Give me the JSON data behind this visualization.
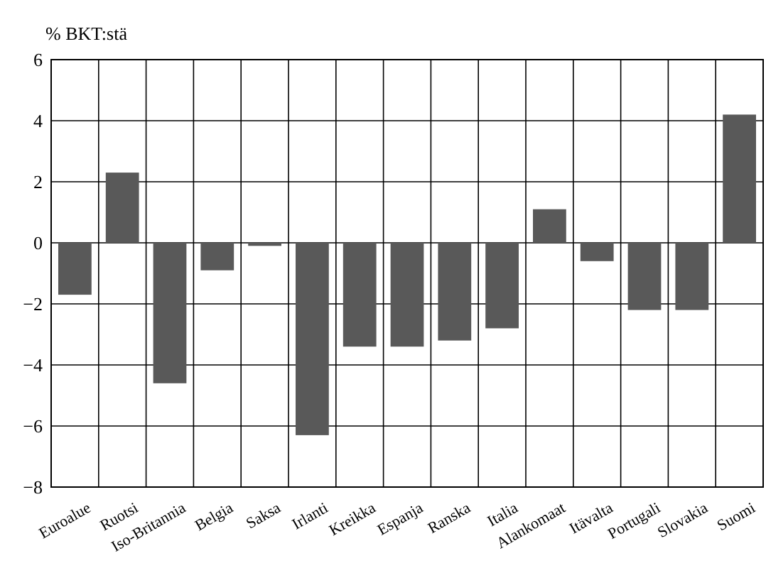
{
  "chart_data": {
    "type": "bar",
    "ylabel": "% BKT:stä",
    "categories": [
      "Euroalue",
      "Ruotsi",
      "Iso-Britannia",
      "Belgia",
      "Saksa",
      "Irlanti",
      "Kreikka",
      "Espanja",
      "Ranska",
      "Italia",
      "Alankomaat",
      "Itävalta",
      "Portugali",
      "Slovakia",
      "Suomi"
    ],
    "values": [
      -1.7,
      2.3,
      -4.6,
      -0.9,
      -0.1,
      -6.3,
      -3.4,
      -3.4,
      -3.2,
      -2.8,
      1.1,
      -0.6,
      -2.2,
      -2.2,
      4.2
    ],
    "color": "#595959",
    "ylim": [
      -8,
      6
    ],
    "yticks": [
      {
        "value": -8,
        "label": "−8"
      },
      {
        "value": -6,
        "label": "−6"
      },
      {
        "value": -4,
        "label": "−4"
      },
      {
        "value": -2,
        "label": "−2"
      },
      0,
      2,
      4,
      6
    ],
    "grid": true
  }
}
